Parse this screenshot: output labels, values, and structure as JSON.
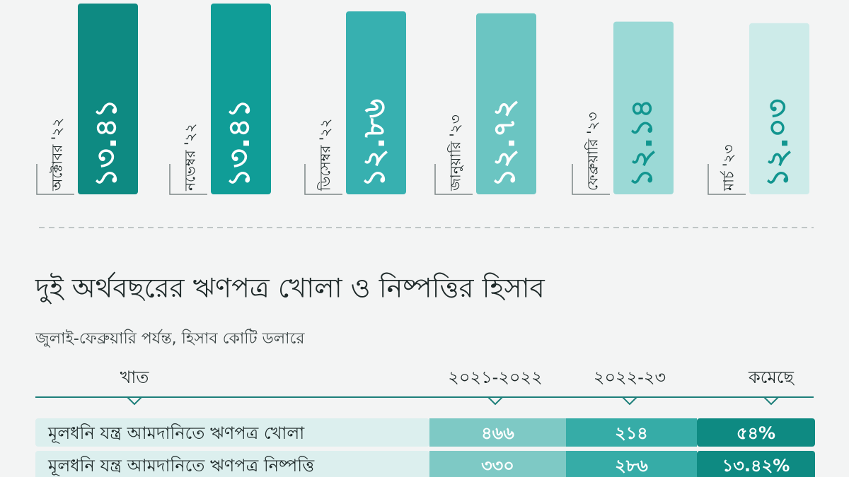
{
  "chart_data": {
    "type": "bar",
    "categories": [
      "অক্টোবর '২২",
      "নভেম্বর '২২",
      "ডিসেম্বর '২২",
      "জানুয়ারি '২৩",
      "ফেব্রুয়ারি '২৩",
      "মার্চ '২৩"
    ],
    "values": [
      13.41,
      13.41,
      12.86,
      12.72,
      12.14,
      12.03
    ],
    "value_labels": [
      "১৩.৪১",
      "১৩.৪১",
      "১২.৮৬",
      "১২.৭২",
      "১২.১৪",
      "১২.০৩"
    ],
    "colors": [
      "#0e8a82",
      "#109d97",
      "#37b0b0",
      "#6bc5c2",
      "#9bd9d6",
      "#cdebe9"
    ]
  },
  "title": "দুই অর্থবছরের ঋণপত্র খোলা ও নিষ্পত্তির হিসাব",
  "subtitle": "জুলাই-ফেব্রুয়ারি পর্যন্ত, হিসাব কোটি ডলারে",
  "table": {
    "header": [
      "খাত",
      "২০২১-২০২২",
      "২০২২-২৩",
      "কমেছে"
    ],
    "rows": [
      [
        "মূলধনি যন্ত্র আমদানিতে ঋণপত্র খোলা",
        "৪৬৬",
        "২১৪",
        "৫৪%"
      ],
      [
        "মূলধনি যন্ত্র আমদানিতে ঋণপত্র নিষ্পত্তি",
        "৩৩০",
        "২৮৬",
        "১৩.৪২%"
      ]
    ]
  }
}
